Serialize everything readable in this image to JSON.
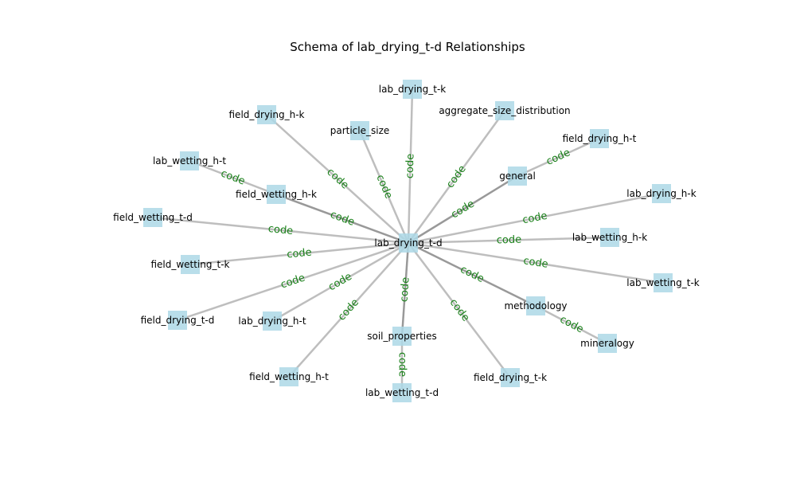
{
  "title": "Schema of lab_drying_t-d Relationships",
  "colors": {
    "node_fill": "#add8e6",
    "edge_light": "#bebebe",
    "edge_dark": "#999999",
    "edge_label": "#1a801a",
    "background": "#ffffff"
  },
  "center": "lab_drying_t-d",
  "nodes": [
    "lab_drying_t-d",
    "lab_drying_t-k",
    "particle_size",
    "aggregate_size_distribution",
    "field_drying_h-k",
    "field_drying_h-t",
    "general",
    "lab_wetting_h-t",
    "field_wetting_h-k",
    "lab_drying_h-k",
    "field_wetting_t-d",
    "lab_wetting_h-k",
    "field_wetting_t-k",
    "lab_wetting_t-k",
    "methodology",
    "field_drying_t-d",
    "lab_drying_h-t",
    "mineralogy",
    "soil_properties",
    "field_wetting_h-t",
    "field_drying_t-k",
    "lab_wetting_t-d"
  ],
  "edge_label": "code",
  "edges": [
    {
      "from": "lab_drying_t-d",
      "to": "lab_drying_t-k",
      "label": "code"
    },
    {
      "from": "lab_drying_t-d",
      "to": "particle_size",
      "label": "code"
    },
    {
      "from": "lab_drying_t-d",
      "to": "aggregate_size_distribution",
      "label": "code"
    },
    {
      "from": "lab_drying_t-d",
      "to": "field_drying_h-k",
      "label": "code"
    },
    {
      "from": "lab_drying_t-d",
      "to": "general",
      "label": "code"
    },
    {
      "from": "general",
      "to": "field_drying_h-t",
      "label": "code"
    },
    {
      "from": "lab_drying_t-d",
      "to": "field_wetting_h-k",
      "label": "code"
    },
    {
      "from": "field_wetting_h-k",
      "to": "lab_wetting_h-t",
      "label": "code"
    },
    {
      "from": "lab_drying_t-d",
      "to": "lab_drying_h-k",
      "label": "code"
    },
    {
      "from": "lab_drying_t-d",
      "to": "field_wetting_t-d",
      "label": "code"
    },
    {
      "from": "lab_drying_t-d",
      "to": "lab_wetting_h-k",
      "label": "code"
    },
    {
      "from": "lab_drying_t-d",
      "to": "field_wetting_t-k",
      "label": "code"
    },
    {
      "from": "lab_drying_t-d",
      "to": "lab_wetting_t-k",
      "label": "code"
    },
    {
      "from": "lab_drying_t-d",
      "to": "field_drying_t-d",
      "label": "code"
    },
    {
      "from": "lab_drying_t-d",
      "to": "methodology",
      "label": "code"
    },
    {
      "from": "methodology",
      "to": "mineralogy",
      "label": "code"
    },
    {
      "from": "lab_drying_t-d",
      "to": "lab_drying_h-t",
      "label": "code"
    },
    {
      "from": "lab_drying_t-d",
      "to": "field_wetting_h-t",
      "label": "code"
    },
    {
      "from": "lab_drying_t-d",
      "to": "soil_properties",
      "label": "code"
    },
    {
      "from": "soil_properties",
      "to": "lab_wetting_t-d",
      "label": "code"
    },
    {
      "from": "lab_drying_t-d",
      "to": "field_drying_t-k",
      "label": "code"
    }
  ]
}
